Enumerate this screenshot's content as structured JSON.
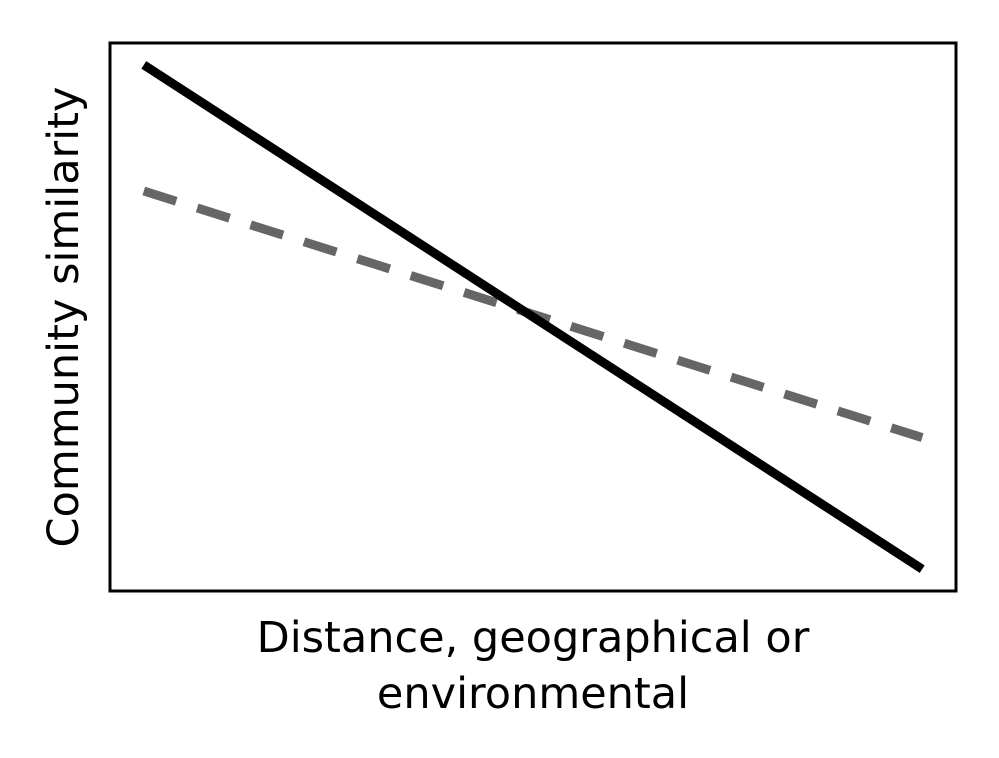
{
  "chart_data": {
    "type": "line",
    "title": "",
    "xlabel_lines": [
      "Distance, geographical or",
      "environmental"
    ],
    "ylabel": "Community similarity",
    "xlim": [
      0,
      1
    ],
    "ylim": [
      0,
      1
    ],
    "x_ticks": [],
    "y_ticks": [],
    "grid": false,
    "legend": "none",
    "series": [
      {
        "style": "solid",
        "color": "#000000",
        "x": [
          0.04,
          0.96
        ],
        "y": [
          0.96,
          0.04
        ]
      },
      {
        "style": "dashed",
        "color": "#666666",
        "x": [
          0.04,
          0.96
        ],
        "y": [
          0.73,
          0.28
        ]
      }
    ]
  }
}
